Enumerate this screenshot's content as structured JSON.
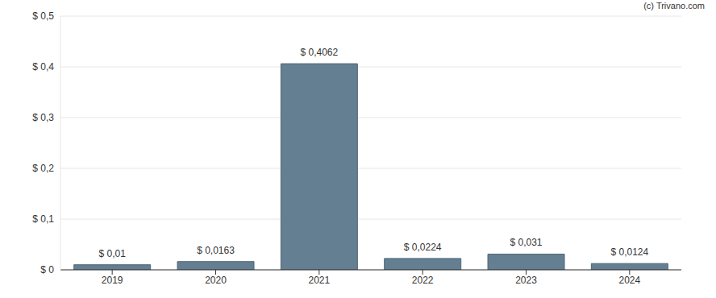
{
  "chart_data": {
    "type": "bar",
    "categories": [
      "2019",
      "2020",
      "2021",
      "2022",
      "2023",
      "2024"
    ],
    "values": [
      0.01,
      0.0163,
      0.4062,
      0.0224,
      0.031,
      0.0124
    ],
    "value_labels": [
      "$ 0,01",
      "$ 0,0163",
      "$ 0,4062",
      "$ 0,0224",
      "$ 0,031",
      "$ 0,0124"
    ],
    "data_labels": true,
    "color": "#647f91",
    "ylim": [
      0,
      0.5
    ],
    "yticks": [
      {
        "value": 0,
        "label": "$ 0"
      },
      {
        "value": 0.1,
        "label": "$ 0,1"
      },
      {
        "value": 0.2,
        "label": "$ 0,2"
      },
      {
        "value": 0.3,
        "label": "$ 0,3"
      },
      {
        "value": 0.4,
        "label": "$ 0,4"
      },
      {
        "value": 0.5,
        "label": "$ 0,5"
      }
    ],
    "grid": true,
    "annotations": [
      "(c) Trivano.com"
    ]
  }
}
